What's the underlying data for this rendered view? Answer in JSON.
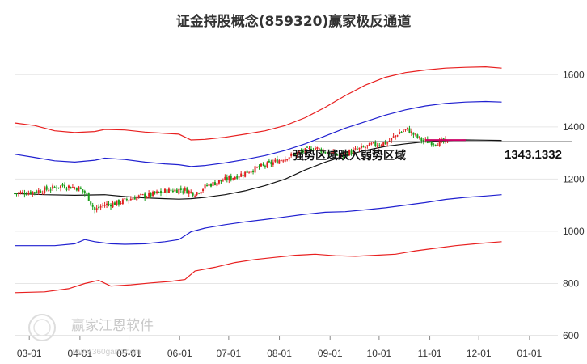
{
  "chart_data": {
    "type": "line",
    "title": "证金持股概念(859320)赢家极反通道",
    "xlabel": "",
    "ylabel": "",
    "ylim": [
      600,
      1700
    ],
    "yticks": [
      600,
      800,
      1000,
      1200,
      1400,
      1600
    ],
    "xticks": [
      "03-01",
      "04-01",
      "05-01",
      "06-01",
      "07-01",
      "08-01",
      "09-01",
      "10-01",
      "11-01",
      "12-01",
      "01-01"
    ],
    "grid": true,
    "legend": "none",
    "annotation": "强势区域跌入弱势区域",
    "last_value": "1343.1332",
    "watermark": "赢家江恩软件",
    "watermark_url": "www.360gann.com",
    "colors": {
      "up": "#e02020",
      "down": "#1a9e1a",
      "outer_band": "#e82020",
      "inner_band": "#2020d0",
      "mid_line": "#111111",
      "current_line": "#cc0066"
    },
    "series": [
      {
        "role": "outer-upper",
        "color": "#e82020",
        "points": [
          [
            0,
            1415
          ],
          [
            10,
            1405
          ],
          [
            20,
            1385
          ],
          [
            30,
            1378
          ],
          [
            40,
            1382
          ],
          [
            45,
            1390
          ],
          [
            55,
            1388
          ],
          [
            65,
            1380
          ],
          [
            75,
            1375
          ],
          [
            82,
            1372
          ],
          [
            88,
            1350
          ],
          [
            95,
            1352
          ],
          [
            105,
            1360
          ],
          [
            115,
            1372
          ],
          [
            125,
            1385
          ],
          [
            135,
            1405
          ],
          [
            145,
            1435
          ],
          [
            155,
            1475
          ],
          [
            165,
            1520
          ],
          [
            175,
            1560
          ],
          [
            185,
            1590
          ],
          [
            195,
            1608
          ],
          [
            205,
            1618
          ],
          [
            215,
            1625
          ],
          [
            225,
            1628
          ],
          [
            235,
            1630
          ],
          [
            243,
            1625
          ]
        ]
      },
      {
        "role": "inner-upper",
        "color": "#2020d0",
        "points": [
          [
            0,
            1295
          ],
          [
            10,
            1283
          ],
          [
            20,
            1270
          ],
          [
            30,
            1265
          ],
          [
            40,
            1272
          ],
          [
            45,
            1280
          ],
          [
            55,
            1275
          ],
          [
            65,
            1265
          ],
          [
            75,
            1258
          ],
          [
            82,
            1255
          ],
          [
            88,
            1248
          ],
          [
            95,
            1252
          ],
          [
            105,
            1262
          ],
          [
            115,
            1275
          ],
          [
            125,
            1290
          ],
          [
            135,
            1310
          ],
          [
            145,
            1335
          ],
          [
            155,
            1365
          ],
          [
            165,
            1395
          ],
          [
            175,
            1420
          ],
          [
            185,
            1445
          ],
          [
            195,
            1465
          ],
          [
            205,
            1480
          ],
          [
            215,
            1490
          ],
          [
            225,
            1495
          ],
          [
            235,
            1497
          ],
          [
            243,
            1495
          ]
        ]
      },
      {
        "role": "mid-line",
        "color": "#111111",
        "points": [
          [
            0,
            1145
          ],
          [
            15,
            1140
          ],
          [
            30,
            1138
          ],
          [
            45,
            1140
          ],
          [
            55,
            1133
          ],
          [
            65,
            1128
          ],
          [
            75,
            1125
          ],
          [
            82,
            1123
          ],
          [
            88,
            1125
          ],
          [
            95,
            1130
          ],
          [
            105,
            1140
          ],
          [
            115,
            1155
          ],
          [
            125,
            1175
          ],
          [
            135,
            1200
          ],
          [
            145,
            1235
          ],
          [
            155,
            1265
          ],
          [
            165,
            1290
          ],
          [
            175,
            1310
          ],
          [
            185,
            1325
          ],
          [
            195,
            1335
          ],
          [
            205,
            1343
          ],
          [
            215,
            1348
          ],
          [
            225,
            1350
          ],
          [
            235,
            1349
          ],
          [
            243,
            1348
          ]
        ]
      },
      {
        "role": "inner-lower",
        "color": "#2020d0",
        "points": [
          [
            0,
            945
          ],
          [
            20,
            945
          ],
          [
            30,
            952
          ],
          [
            35,
            968
          ],
          [
            40,
            960
          ],
          [
            48,
            952
          ],
          [
            55,
            950
          ],
          [
            65,
            952
          ],
          [
            75,
            960
          ],
          [
            82,
            968
          ],
          [
            88,
            998
          ],
          [
            95,
            1012
          ],
          [
            105,
            1025
          ],
          [
            115,
            1036
          ],
          [
            125,
            1045
          ],
          [
            135,
            1055
          ],
          [
            145,
            1065
          ],
          [
            155,
            1073
          ],
          [
            165,
            1075
          ],
          [
            175,
            1082
          ],
          [
            185,
            1090
          ],
          [
            195,
            1100
          ],
          [
            205,
            1110
          ],
          [
            215,
            1122
          ],
          [
            225,
            1130
          ],
          [
            235,
            1135
          ],
          [
            243,
            1140
          ]
        ]
      },
      {
        "role": "outer-lower",
        "color": "#e82020",
        "points": [
          [
            0,
            765
          ],
          [
            15,
            768
          ],
          [
            27,
            780
          ],
          [
            35,
            800
          ],
          [
            42,
            812
          ],
          [
            48,
            790
          ],
          [
            58,
            795
          ],
          [
            68,
            802
          ],
          [
            78,
            808
          ],
          [
            85,
            815
          ],
          [
            90,
            848
          ],
          [
            100,
            862
          ],
          [
            110,
            880
          ],
          [
            120,
            892
          ],
          [
            130,
            900
          ],
          [
            140,
            908
          ],
          [
            150,
            912
          ],
          [
            160,
            906
          ],
          [
            170,
            904
          ],
          [
            180,
            908
          ],
          [
            190,
            912
          ],
          [
            200,
            925
          ],
          [
            210,
            935
          ],
          [
            220,
            945
          ],
          [
            230,
            952
          ],
          [
            243,
            960
          ]
        ]
      }
    ],
    "candles_approx_close": [
      [
        0,
        1145
      ],
      [
        8,
        1150
      ],
      [
        16,
        1160
      ],
      [
        24,
        1175
      ],
      [
        32,
        1165
      ],
      [
        36,
        1140
      ],
      [
        40,
        1080
      ],
      [
        44,
        1100
      ],
      [
        52,
        1110
      ],
      [
        60,
        1130
      ],
      [
        68,
        1140
      ],
      [
        76,
        1155
      ],
      [
        84,
        1160
      ],
      [
        90,
        1145
      ],
      [
        96,
        1175
      ],
      [
        104,
        1195
      ],
      [
        112,
        1215
      ],
      [
        120,
        1240
      ],
      [
        128,
        1260
      ],
      [
        136,
        1285
      ],
      [
        144,
        1305
      ],
      [
        150,
        1320
      ],
      [
        156,
        1300
      ],
      [
        162,
        1290
      ],
      [
        170,
        1310
      ],
      [
        178,
        1330
      ],
      [
        186,
        1340
      ],
      [
        192,
        1380
      ],
      [
        196,
        1390
      ],
      [
        200,
        1365
      ],
      [
        204,
        1345
      ],
      [
        210,
        1340
      ],
      [
        216,
        1343
      ]
    ],
    "x_day_index_ticks": [
      9,
      40,
      70,
      101,
      131,
      162,
      193,
      223,
      254,
      284,
      315
    ],
    "x_day_range": [
      0,
      320
    ]
  }
}
